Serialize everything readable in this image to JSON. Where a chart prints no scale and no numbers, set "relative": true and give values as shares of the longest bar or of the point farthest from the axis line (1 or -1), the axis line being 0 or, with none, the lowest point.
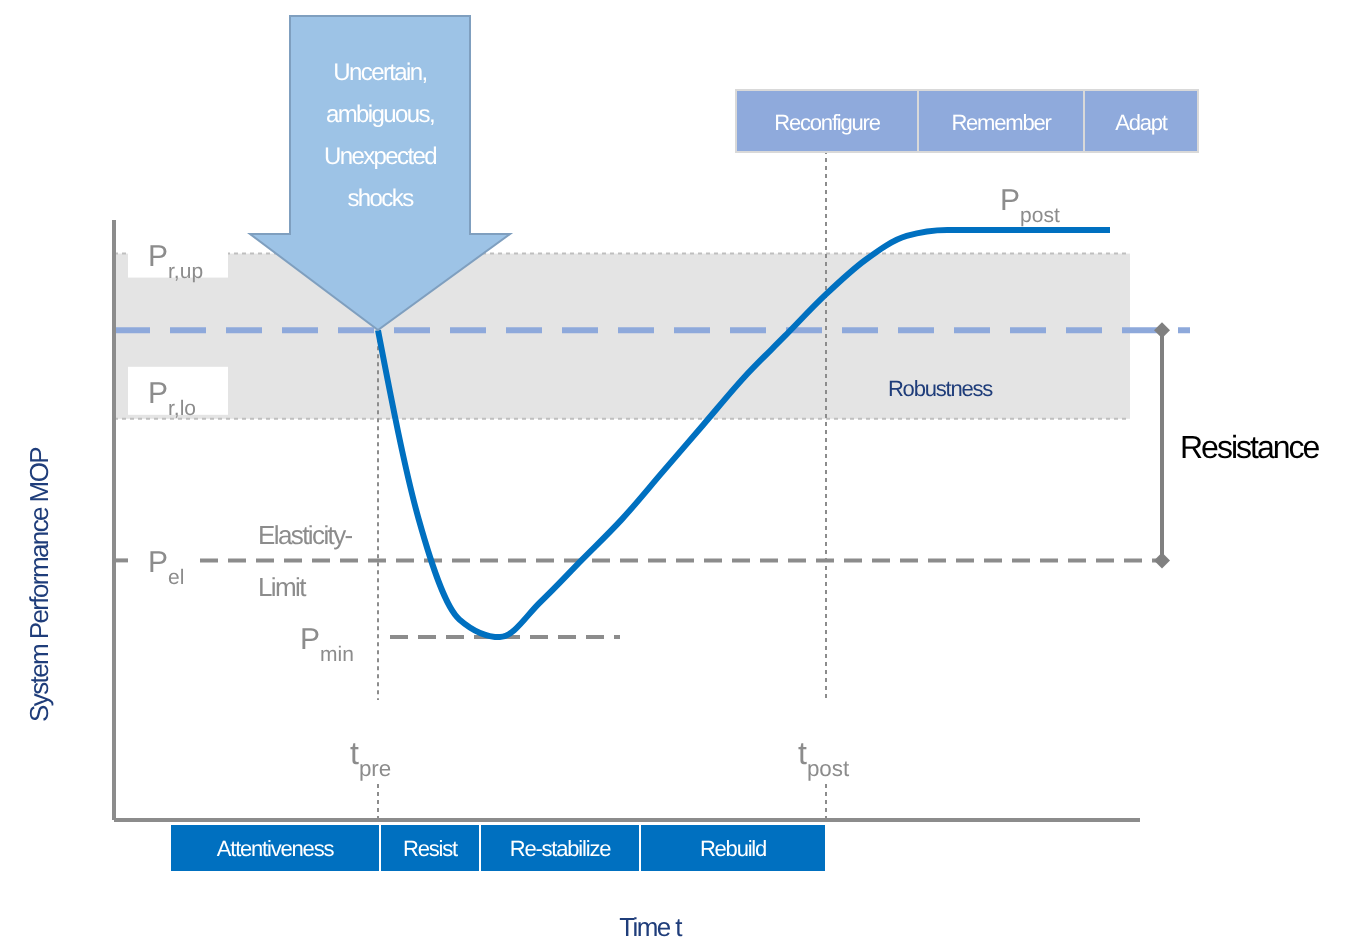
{
  "chart_data": {
    "type": "line",
    "relative": true,
    "xlabel": "Time t",
    "ylabel": "System Performance MOP",
    "categories": [
      null,
      null,
      null,
      null,
      null,
      null,
      null,
      null,
      null,
      null,
      null,
      null,
      null,
      null,
      null,
      null,
      null,
      null,
      null,
      null,
      null,
      null,
      null,
      null,
      null
    ],
    "series": [
      {
        "color": "#0070c0",
        "values": [
          null,
          null,
          null,
          null,
          null,
          null,
          0.83,
          0.51,
          0.34,
          0.31,
          0.37,
          0.44,
          0.51,
          0.59,
          0.67,
          0.75,
          0.82,
          0.89,
          0.95,
          0.99,
          1,
          1,
          1,
          1,
          1
        ]
      }
    ],
    "ref_lines": [
      {
        "axis": "y",
        "value": 0.83,
        "color": "#8ea9db",
        "line_style": "dashed"
      },
      {
        "axis": "y",
        "value": 0.96,
        "label": "P$_{r,up}$",
        "color": "#bfbfbf",
        "line_style": "dotted"
      },
      {
        "axis": "y",
        "value": 0.68,
        "label": "P$_{r,lo}$",
        "color": "#bfbfbf",
        "line_style": "dotted"
      },
      {
        "axis": "y",
        "value": 0.44,
        "label": "P$_{el}$",
        "color": "#8c8c8c",
        "line_style": "dashed"
      },
      {
        "axis": "y",
        "value": 0.31,
        "label": "P$_{min}$",
        "color": "#8c8c8c",
        "line_style": "dashed"
      }
    ],
    "bands": [
      {
        "axis": "y",
        "from": 0.68,
        "to": 0.96,
        "label": "Robustness",
        "color": "#d9d9d9"
      }
    ],
    "annotations": [
      "Uncertain, ambiguous, Unexpected shocks",
      "Elasticity-Limit",
      "Resistance",
      "Attentiveness",
      "Resist",
      "Re-stabilize",
      "Rebuild",
      "Reconfigure",
      "Remember",
      "Adapt",
      "t$_{pre}$",
      "t$_{post}$",
      "P$_{post}$"
    ]
  }
}
